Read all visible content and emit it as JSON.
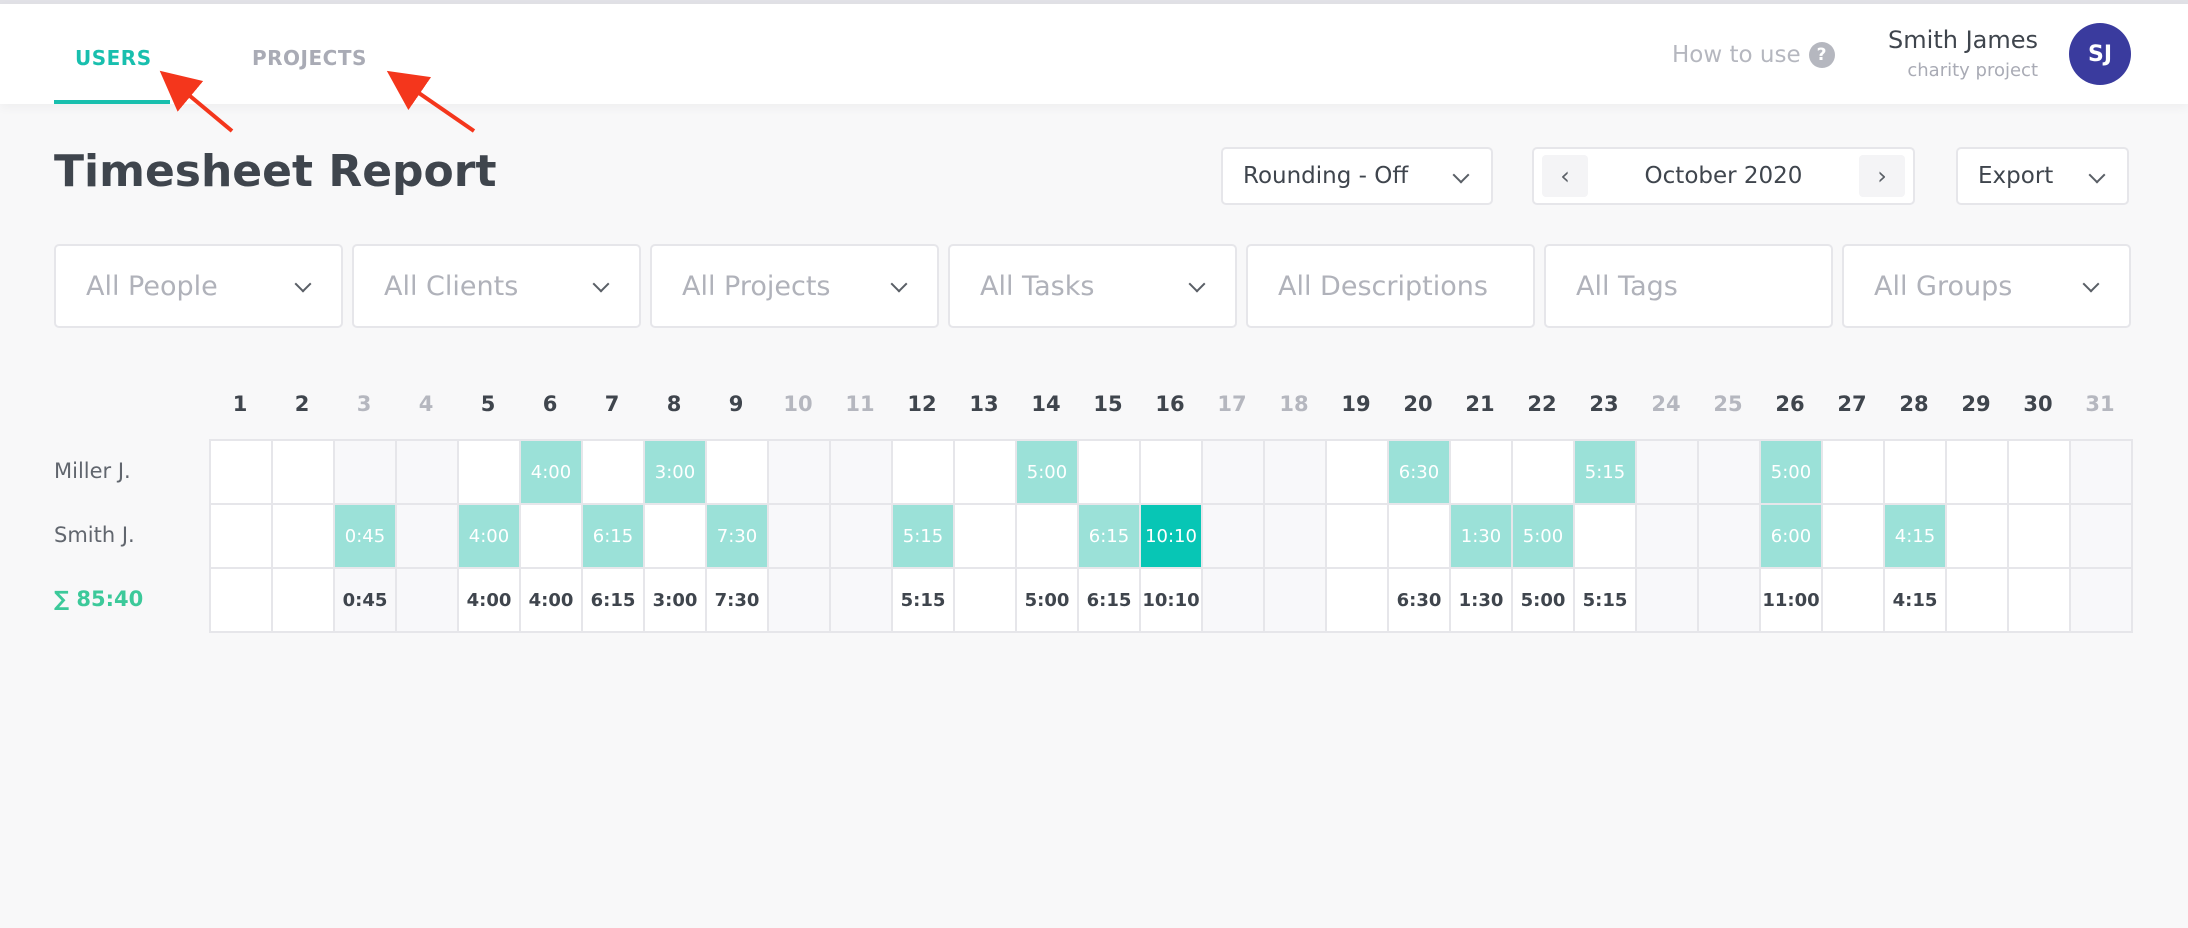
{
  "header": {
    "tabs": [
      {
        "label": "USERS",
        "active": true
      },
      {
        "label": "PROJECTS",
        "active": false
      }
    ],
    "how_to_use": "How to use",
    "help_icon": "question-circle-icon",
    "user": {
      "name": "Smith James",
      "project": "charity project",
      "initials": "SJ",
      "avatar_color": "#3a3b9e"
    }
  },
  "page": {
    "title": "Timesheet Report"
  },
  "toolbar": {
    "rounding": "Rounding - Off",
    "period": "October 2020",
    "export": "Export"
  },
  "filters": [
    {
      "label": "All People",
      "dropdown": true
    },
    {
      "label": "All Clients",
      "dropdown": true
    },
    {
      "label": "All Projects",
      "dropdown": true
    },
    {
      "label": "All Tasks",
      "dropdown": true
    },
    {
      "label": "All Descriptions",
      "dropdown": false
    },
    {
      "label": "All Tags",
      "dropdown": false
    },
    {
      "label": "All Groups",
      "dropdown": true
    }
  ],
  "colors": {
    "accent": "#18bfae",
    "entry": "#9be1d8",
    "entry_max": "#07c6b5",
    "total": "#3cc99a"
  },
  "timesheet": {
    "days": [
      "1",
      "2",
      "3",
      "4",
      "5",
      "6",
      "7",
      "8",
      "9",
      "10",
      "11",
      "12",
      "13",
      "14",
      "15",
      "16",
      "17",
      "18",
      "19",
      "20",
      "21",
      "22",
      "23",
      "24",
      "25",
      "26",
      "27",
      "28",
      "29",
      "30",
      "31"
    ],
    "weekend_days": [
      "3",
      "4",
      "10",
      "11",
      "17",
      "18",
      "24",
      "25",
      "31"
    ],
    "rows": [
      {
        "label": "Miller J.",
        "entries": {
          "6": "4:00",
          "8": "3:00",
          "14": "5:00",
          "20": "6:30",
          "23": "5:15",
          "26": "5:00"
        }
      },
      {
        "label": "Smith J.",
        "entries": {
          "3": "0:45",
          "5": "4:00",
          "7": "6:15",
          "9": "7:30",
          "12": "5:15",
          "15": "6:15",
          "16": "10:10",
          "21": "1:30",
          "22": "5:00",
          "26": "6:00",
          "28": "4:15"
        }
      }
    ],
    "highlighted": {
      "row": "Smith J.",
      "day": "16"
    },
    "total_label": "∑ 85:40",
    "totals": {
      "3": "0:45",
      "5": "4:00",
      "6": "4:00",
      "7": "6:15",
      "8": "3:00",
      "9": "7:30",
      "12": "5:15",
      "14": "5:00",
      "15": "6:15",
      "16": "10:10",
      "20": "6:30",
      "21": "1:30",
      "22": "5:00",
      "23": "5:15",
      "26": "11:00",
      "28": "4:15"
    }
  }
}
